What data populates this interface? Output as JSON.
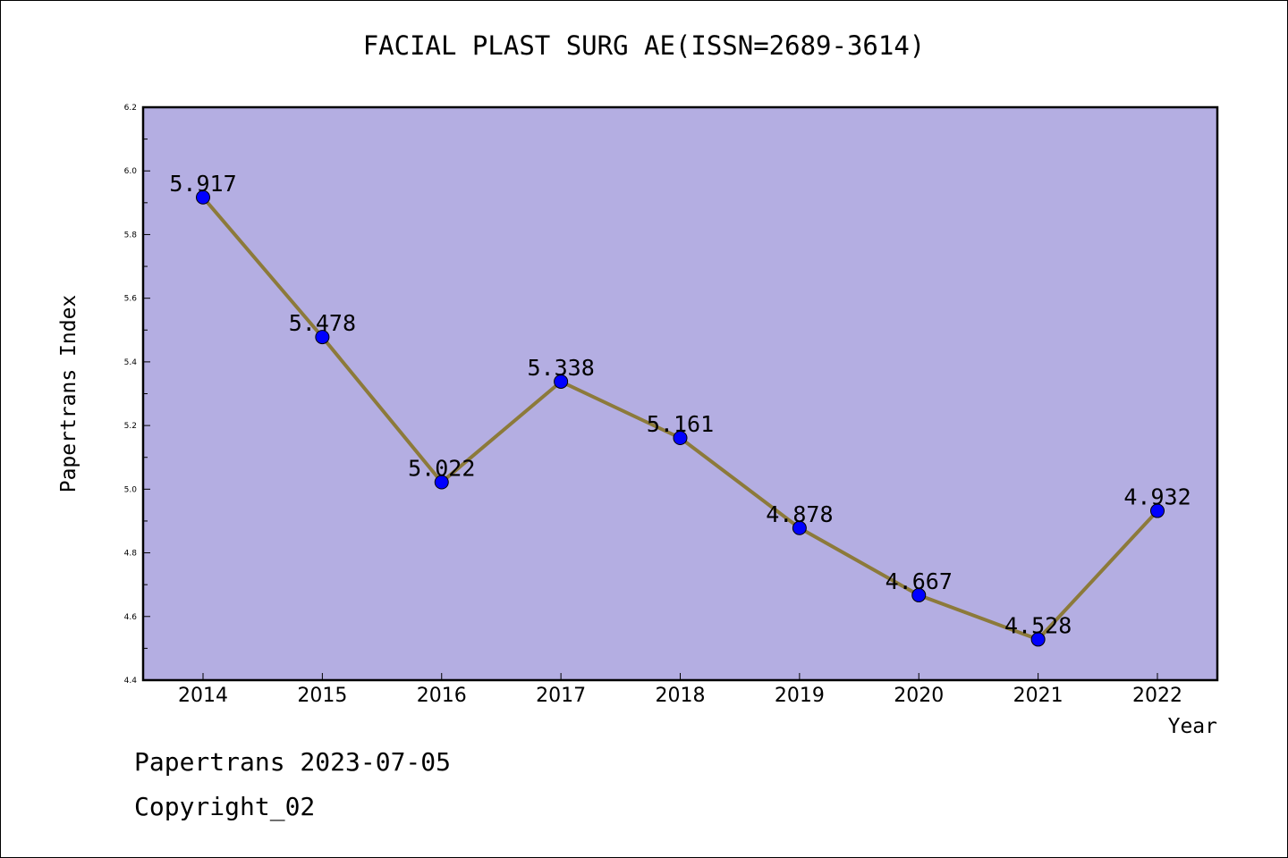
{
  "chart_data": {
    "type": "line",
    "title": "FACIAL PLAST SURG AE(ISSN=2689-3614)",
    "xlabel": "Year",
    "ylabel": "Papertrans Index",
    "categories": [
      "2014",
      "2015",
      "2016",
      "2017",
      "2018",
      "2019",
      "2020",
      "2021",
      "2022"
    ],
    "values": [
      5.917,
      5.478,
      5.022,
      5.338,
      5.161,
      4.878,
      4.667,
      4.528,
      4.932
    ],
    "data_labels": [
      "5.917",
      "5.478",
      "5.022",
      "5.338",
      "5.161",
      "4.878",
      "4.667",
      "4.528",
      "4.932"
    ],
    "ylim": [
      4.4,
      6.2
    ],
    "yticks": [
      "4.4",
      "4.6",
      "4.8",
      "5.0",
      "5.2",
      "5.4",
      "5.6",
      "5.8",
      "6.0",
      "6.2"
    ],
    "grid": false,
    "colors": {
      "plot_background": "#b4aee2",
      "line": "#8c7a3a",
      "marker": "#0000ff"
    }
  },
  "footer": {
    "line1": "Papertrans 2023-07-05",
    "line2": "Copyright_02"
  }
}
